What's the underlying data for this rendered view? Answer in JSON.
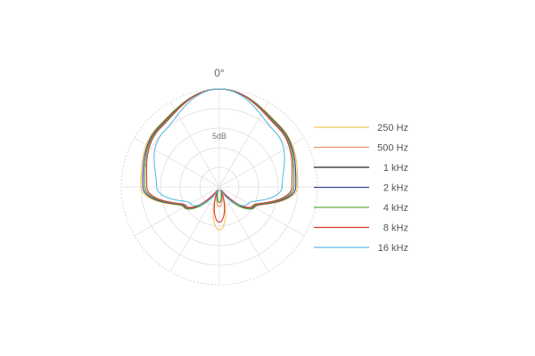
{
  "chart_data": {
    "type": "polar",
    "angle_label": "0°",
    "radial_tick_label": "5dB",
    "rings_db": [
      0,
      -5,
      -10,
      -15,
      -20,
      -25
    ],
    "radial_range_db": [
      -25,
      0
    ],
    "spokes_deg": [
      0,
      30,
      60,
      90,
      120,
      150,
      180,
      210,
      240,
      270,
      300,
      330
    ],
    "legend_position": "right",
    "series": [
      {
        "name": "250 Hz",
        "color": "#f2c35a",
        "pattern": "cardioid",
        "front_db": 0,
        "side_db": -5,
        "rear_db": -14,
        "null_deg": 150,
        "null_db": -24
      },
      {
        "name": "500 Hz",
        "color": "#f0956a",
        "pattern": "supercardioid",
        "front_db": 0,
        "side_db": -5.5,
        "rear_db": -20,
        "null_deg": 152,
        "null_db": -24
      },
      {
        "name": "1 kHz",
        "color": "#222222",
        "pattern": "supercardioid",
        "front_db": 0,
        "side_db": -6,
        "rear_db": -21,
        "null_deg": 155,
        "null_db": -24
      },
      {
        "name": "2 kHz",
        "color": "#3b4a9c",
        "pattern": "supercardioid",
        "front_db": 0,
        "side_db": -5.5,
        "rear_db": -21,
        "null_deg": 155,
        "null_db": -24
      },
      {
        "name": "4 kHz",
        "color": "#5fae3a",
        "pattern": "supercardioid",
        "front_db": 0,
        "side_db": -6,
        "rear_db": -21,
        "null_deg": 158,
        "null_db": -24
      },
      {
        "name": "8 kHz",
        "color": "#d63a32",
        "pattern": "supercardioid",
        "front_db": 0,
        "side_db": -6.5,
        "rear_db": -16,
        "null_deg": 150,
        "null_db": -24
      },
      {
        "name": "16 kHz",
        "color": "#5bbde0",
        "pattern": "hypercardioid",
        "front_db": 0,
        "side_db": -9,
        "rear_db": -24,
        "null_deg": 160,
        "null_db": -24
      }
    ]
  }
}
